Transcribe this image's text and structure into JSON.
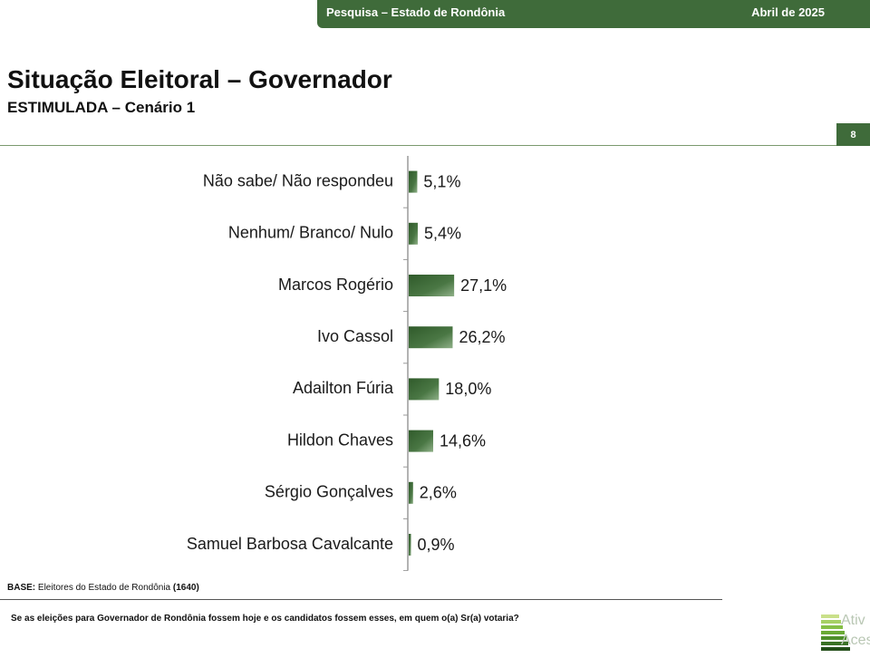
{
  "header": {
    "survey": "Pesquisa – Estado de Rondônia",
    "date": "Abril de 2025"
  },
  "page_title": "Situação Eleitoral – Governador",
  "page_subtitle": "ESTIMULADA – Cenário 1",
  "page_number": "8",
  "footer": {
    "base_label": "BASE:",
    "base_text": "Eleitores do Estado de Rondônia",
    "base_count": "(1640)",
    "question": "Se as eleições para Governador de Rondônia fossem hoje e os candidatos fossem esses, em quem o(a) Sr(a) votaria?"
  },
  "logo": {
    "text_line1": "Ativ",
    "text_line2": "Aces"
  },
  "colors": {
    "brand_green": "#3f6b3a",
    "bar_dark": "#2f5a2a",
    "bar_light": "#6d9566",
    "logo_green": "#7fbf3f"
  },
  "chart_data": {
    "type": "bar",
    "orientation": "horizontal",
    "categories": [
      "Não sabe/ Não respondeu",
      "Nenhum/ Branco/ Nulo",
      "Marcos Rogério",
      "Ivo Cassol",
      "Adailton Fúria",
      "Hildon Chaves",
      "Sérgio Gonçalves",
      "Samuel Barbosa Cavalcante"
    ],
    "values": [
      5.1,
      5.4,
      27.1,
      26.2,
      18.0,
      14.6,
      2.6,
      0.9
    ],
    "labels": [
      "5,1%",
      "5,4%",
      "27,1%",
      "26,2%",
      "18,0%",
      "14,6%",
      "2,6%",
      "0,9%"
    ],
    "unit": "%",
    "xlim": [
      0,
      100
    ]
  }
}
